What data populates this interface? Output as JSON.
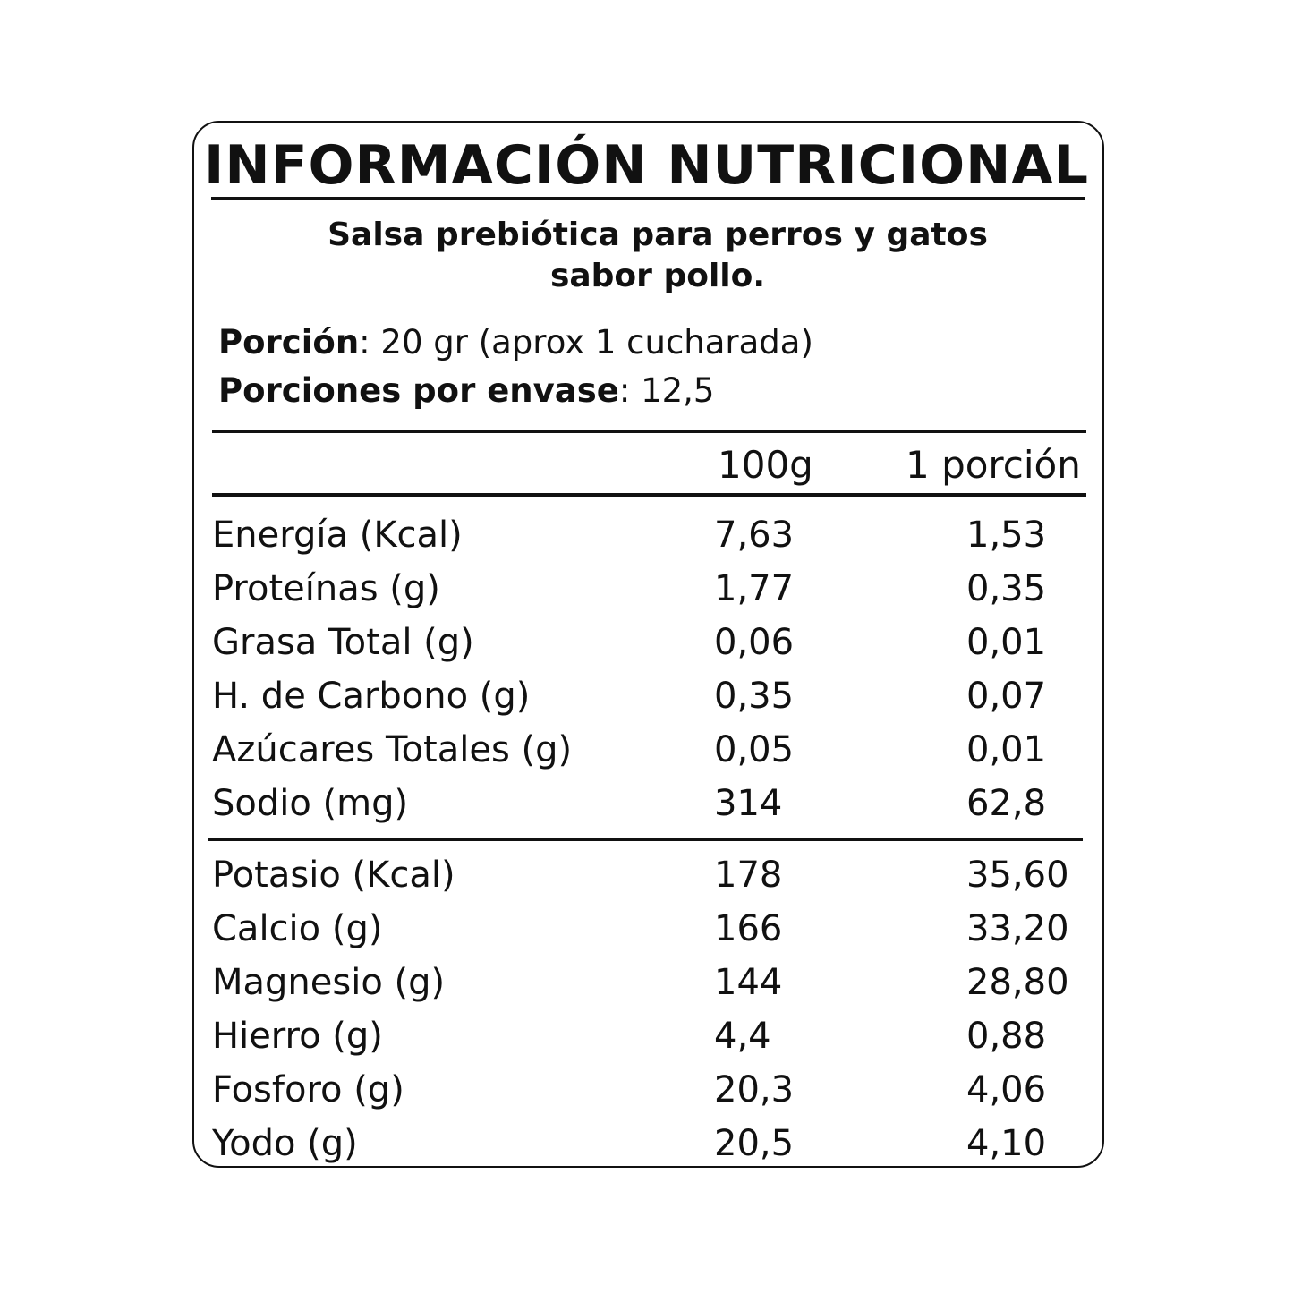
{
  "title": "INFORMACIÓN NUTRICIONAL",
  "subtitle_line1": "Salsa prebiótica para perros y gatos",
  "subtitle_line2": "sabor pollo.",
  "portion": {
    "label": "Porción",
    "value": ": 20 gr (aprox 1 cucharada)"
  },
  "servings": {
    "label": "Porciones por envase",
    "value": ":  12,5"
  },
  "columns": {
    "per100": "100g",
    "perPortion": "1 porción"
  },
  "rows_main": [
    {
      "name": "Energía (Kcal)",
      "per100": "7,63",
      "portion": "1,53"
    },
    {
      "name": "Proteínas (g)",
      "per100": "1,77",
      "portion": "0,35"
    },
    {
      "name": "Grasa Total (g)",
      "per100": "0,06",
      "portion": "0,01"
    },
    {
      "name": "H. de Carbono (g)",
      "per100": "0,35",
      "portion": "0,07"
    },
    {
      "name": "Azúcares Totales (g)",
      "per100": "0,05",
      "portion": "0,01"
    },
    {
      "name": "Sodio (mg)",
      "per100": "314",
      "portion": "62,8"
    }
  ],
  "rows_minerals": [
    {
      "name": "Potasio (Kcal)",
      "per100": "178",
      "portion": "35,60"
    },
    {
      "name": "Calcio (g)",
      "per100": "166",
      "portion": "33,20"
    },
    {
      "name": "Magnesio (g)",
      "per100": "144",
      "portion": "28,80"
    },
    {
      "name": "Hierro (g)",
      "per100": "4,4",
      "portion": "0,88"
    },
    {
      "name": "Fosforo (g)",
      "per100": "20,3",
      "portion": "4,06"
    },
    {
      "name": "Yodo (g)",
      "per100": "20,5",
      "portion": "4,10"
    }
  ]
}
